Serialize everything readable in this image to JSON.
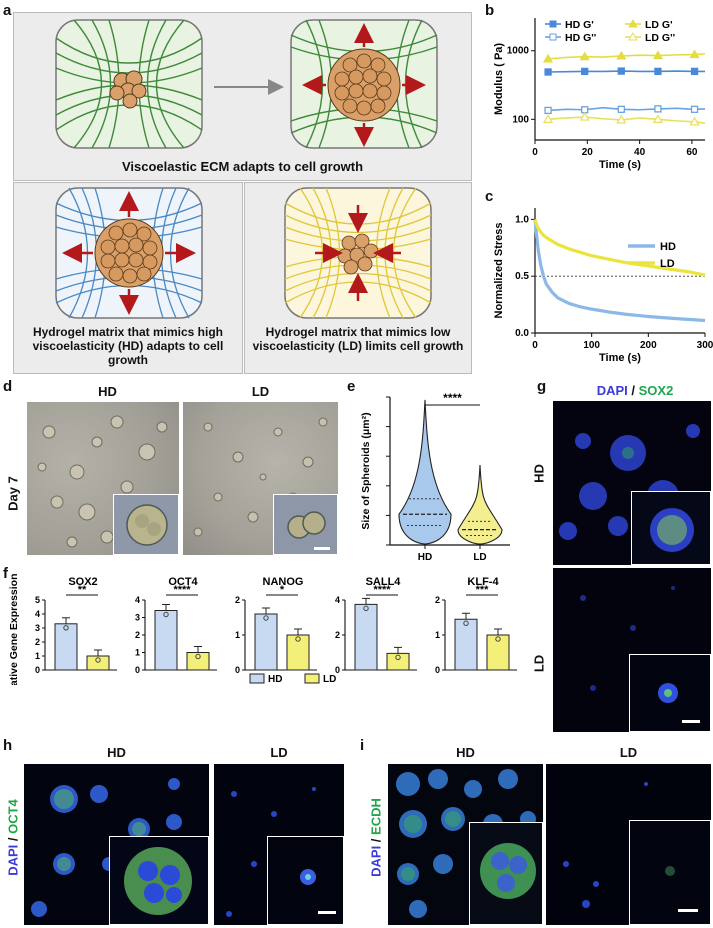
{
  "panel_letters": {
    "a": "a",
    "b": "b",
    "c": "c",
    "d": "d",
    "e": "e",
    "f": "f",
    "g": "g",
    "h": "h",
    "i": "i"
  },
  "panel_a": {
    "top_caption": "Viscoelastic ECM adapts to cell growth",
    "hd_caption": "Hydrogel matrix that mimics high viscoelasticity (HD) adapts to cell growth",
    "ld_caption": "Hydrogel matrix that mimics low viscoelasticity (LD) limits cell growth",
    "colors": {
      "green": "#3f8a3a",
      "blue": "#4a89c4",
      "yellow": "#e2c63a",
      "arrow": "#b3191b",
      "cell": "#d9a06a"
    }
  },
  "panel_d": {
    "title_hd": "HD",
    "title_ld": "LD",
    "day_label": "Day 7"
  },
  "panel_e": {
    "significance": "****"
  },
  "panel_g": {
    "stain_dapi": "DAPI",
    "stain_sep": " / ",
    "stain_marker": "SOX2",
    "row_hd": "HD",
    "row_ld": "LD"
  },
  "panel_h": {
    "title_hd": "HD",
    "title_ld": "LD",
    "stain_dapi": "DAPI",
    "stain_sep": " / ",
    "stain_marker": "OCT4"
  },
  "panel_i": {
    "title_hd": "HD",
    "title_ld": "LD",
    "stain_dapi": "DAPI",
    "stain_sep": " / ",
    "stain_marker": "ECDH"
  },
  "chart_data": [
    {
      "id": "b",
      "type": "line",
      "xlabel": "Time (s)",
      "ylabel": "Modulus (  Pa)",
      "xlim": [
        0,
        65
      ],
      "ylim_log": [
        50,
        3000
      ],
      "log_y": true,
      "xticks": [
        0,
        20,
        40,
        60
      ],
      "yticks": [
        100,
        1000
      ],
      "x": [
        5,
        12,
        19,
        26,
        33,
        40,
        47,
        54,
        61,
        65
      ],
      "series": [
        {
          "name": "HD G'",
          "values": [
            490,
            495,
            500,
            500,
            505,
            500,
            500,
            505,
            500,
            500
          ],
          "color": "#4a89d8",
          "marker": "square-filled"
        },
        {
          "name": "HD G''",
          "values": [
            135,
            140,
            138,
            148,
            140,
            138,
            142,
            145,
            140,
            142
          ],
          "color": "#6aa2e2",
          "marker": "square-open"
        },
        {
          "name": "LD G'",
          "values": [
            760,
            800,
            820,
            810,
            840,
            860,
            850,
            870,
            880,
            900
          ],
          "color": "#e5dc3f",
          "marker": "triangle-filled"
        },
        {
          "name": "LD G''",
          "values": [
            100,
            105,
            108,
            102,
            98,
            105,
            100,
            95,
            92,
            88
          ],
          "color": "#e8df5a",
          "marker": "triangle-open"
        }
      ]
    },
    {
      "id": "c",
      "type": "line",
      "xlabel": "Time (s)",
      "ylabel": "Normalized Stress",
      "xlim": [
        0,
        300
      ],
      "ylim": [
        0,
        1.1
      ],
      "xticks": [
        0,
        100,
        200,
        300
      ],
      "yticks": [
        0.0,
        0.5,
        1.0
      ],
      "reference_y": 0.5,
      "x": [
        0,
        3,
        6,
        10,
        15,
        20,
        30,
        40,
        60,
        80,
        100,
        130,
        160,
        200,
        240,
        270,
        300
      ],
      "series": [
        {
          "name": "HD",
          "values": [
            1.0,
            0.85,
            0.72,
            0.6,
            0.5,
            0.43,
            0.36,
            0.31,
            0.26,
            0.23,
            0.21,
            0.185,
            0.165,
            0.145,
            0.13,
            0.12,
            0.11
          ],
          "color": "#8bb8e8"
        },
        {
          "name": "LD",
          "values": [
            1.0,
            0.95,
            0.92,
            0.89,
            0.86,
            0.84,
            0.81,
            0.78,
            0.74,
            0.71,
            0.68,
            0.65,
            0.62,
            0.59,
            0.56,
            0.54,
            0.51
          ],
          "color": "#ece43c"
        }
      ]
    },
    {
      "id": "e",
      "type": "violin",
      "ylabel": "Size of Spheroids (μm²)",
      "categories": [
        "HD",
        "LD"
      ],
      "ylim": [
        0,
        2500
      ],
      "yticks": [
        0,
        500,
        1000,
        1500,
        2000,
        2500
      ],
      "max": [
        2450,
        1350
      ],
      "median": [
        520,
        260
      ],
      "q1": [
        330,
        160
      ],
      "q3": [
        780,
        400
      ],
      "colors": [
        "#a9c9ec",
        "#f3ee8f"
      ],
      "significance": "****"
    },
    {
      "id": "f",
      "type": "bar",
      "ylabel": "Relative Gene Expression",
      "categories": [
        "HD",
        "LD"
      ],
      "colors": [
        "#c7daf2",
        "#f3ef79"
      ],
      "legend": [
        "HD",
        "LD"
      ],
      "genes": [
        {
          "name": "SOX2",
          "values": [
            3.3,
            1.0
          ],
          "ylim": [
            0,
            5
          ],
          "yticks": [
            0,
            1,
            2,
            3,
            4,
            5
          ],
          "sig": "**"
        },
        {
          "name": "OCT4",
          "values": [
            3.4,
            1.0
          ],
          "ylim": [
            0,
            4
          ],
          "yticks": [
            0,
            1,
            2,
            3,
            4
          ],
          "sig": "****"
        },
        {
          "name": "NANOG",
          "values": [
            1.6,
            1.0
          ],
          "ylim": [
            0,
            2
          ],
          "yticks": [
            0,
            1,
            2
          ],
          "sig": "*"
        },
        {
          "name": "SALL4",
          "values": [
            3.75,
            0.95
          ],
          "ylim": [
            0,
            4
          ],
          "yticks": [
            0,
            2,
            4
          ],
          "sig": "****"
        },
        {
          "name": "KLF-4",
          "values": [
            1.45,
            1.0
          ],
          "ylim": [
            0,
            2
          ],
          "yticks": [
            0,
            1,
            2
          ],
          "sig": "***"
        }
      ]
    }
  ]
}
